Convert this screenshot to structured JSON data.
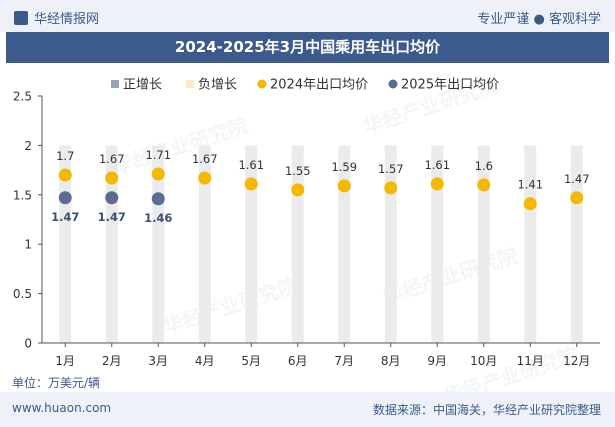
{
  "header": {
    "brand": "华经情报网",
    "tagline": "专业严谨 ● 客观科学"
  },
  "footer": {
    "website": "www.huaon.com",
    "source": "数据来源：中国海关，华经产业研究院整理",
    "unit": "单位：万美元/辆"
  },
  "watermark": "华经产业研究院",
  "colors": {
    "title_bg": "#3d5a8c",
    "pos_growth": "#9aa3b5",
    "neg_growth": "#fde9c6",
    "series_2024": "#f5b800",
    "series_2025": "#5a6c91",
    "bar_bg": "#ebebeb"
  },
  "chart_data": {
    "type": "scatter",
    "title": "2024-2025年3月中国乘用车出口均价",
    "categories": [
      "1月",
      "2月",
      "3月",
      "4月",
      "5月",
      "6月",
      "7月",
      "8月",
      "9月",
      "10月",
      "11月",
      "12月"
    ],
    "legend": [
      "正增长",
      "负增长",
      "2024年出口均价",
      "2025年出口均价"
    ],
    "series": [
      {
        "name": "2024年出口均价",
        "values": [
          1.7,
          1.67,
          1.71,
          1.67,
          1.61,
          1.55,
          1.59,
          1.57,
          1.61,
          1.6,
          1.41,
          1.47
        ]
      },
      {
        "name": "2025年出口均价",
        "values": [
          1.47,
          1.47,
          1.46,
          null,
          null,
          null,
          null,
          null,
          null,
          null,
          null,
          null
        ]
      }
    ],
    "ylim": [
      0,
      2.5
    ],
    "yticks": [
      "0",
      "0.5",
      "1",
      "1.5",
      "2",
      "2.5"
    ],
    "xlabel": "",
    "ylabel": ""
  }
}
